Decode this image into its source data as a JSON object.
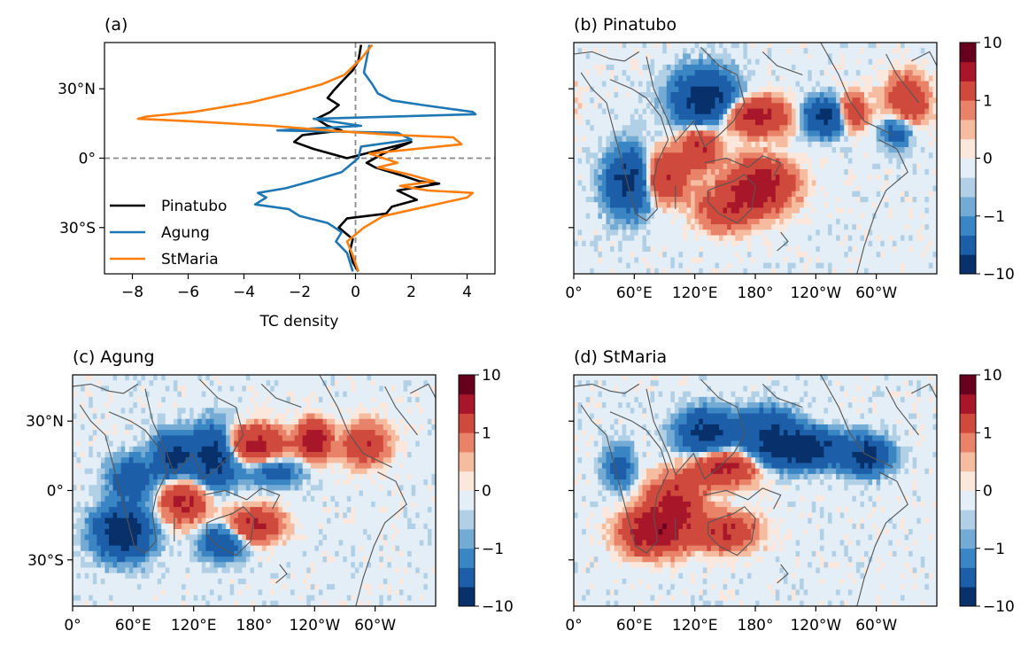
{
  "chart_data": [
    {
      "id": "a",
      "type": "line",
      "title": "(a)",
      "xlabel": "TC density",
      "ylabel": "",
      "xlim": [
        -9,
        5
      ],
      "ylim": [
        -50,
        50
      ],
      "xticks": [
        -8,
        -6,
        -4,
        -2,
        0,
        2,
        4
      ],
      "xtick_labels": [
        "−8",
        "−6",
        "−4",
        "−2",
        "0",
        "2",
        "4"
      ],
      "yticks": [
        30,
        0,
        -30
      ],
      "ytick_labels": [
        "30°N",
        "0°",
        "30°S"
      ],
      "reference_lines": [
        "x=0 dashed",
        "y=0 dashed"
      ],
      "legend_placement": "lower-left",
      "series": [
        {
          "name": "Pinatubo",
          "color": "#000000",
          "x": [
            0.2,
            0.1,
            -0.1,
            -0.5,
            -0.8,
            -1.0,
            -0.6,
            -0.9,
            -1.4,
            -1.0,
            -0.5,
            -1.9,
            -2.2,
            -1.5,
            -0.3,
            2.0,
            1.0,
            0.4,
            0.7,
            1.8,
            2.3,
            3.0,
            1.5,
            2.2,
            1.3,
            1.1,
            -0.3,
            -0.6,
            -0.1,
            -0.2,
            -0.1,
            0.1
          ],
          "y": [
            49,
            42,
            38,
            33,
            29,
            26,
            23,
            20,
            17,
            14,
            12,
            10,
            7,
            4,
            0,
            7,
            2,
            -2,
            -4,
            -8,
            -10,
            -11,
            -14,
            -18,
            -21,
            -24,
            -26,
            -30,
            -35,
            -40,
            -45,
            -49
          ]
        },
        {
          "name": "Agung",
          "color": "#1f77b4",
          "x": [
            0.5,
            0.4,
            0.3,
            0.6,
            0.8,
            1.3,
            2.4,
            3.6,
            4.2,
            4.3,
            -1.5,
            0.2,
            -2.8,
            1.5,
            2.0,
            0.2,
            0.1,
            -0.5,
            -1.6,
            -2.5,
            -3.5,
            -3.2,
            -3.6,
            -2.4,
            -2.0,
            -1.0,
            -0.5,
            -0.7,
            -0.3,
            -0.2,
            -0.1
          ],
          "y": [
            49,
            43,
            37,
            32,
            28,
            25,
            23,
            21,
            20,
            19,
            17,
            14,
            12,
            11,
            8,
            5,
            0,
            -6,
            -10,
            -13,
            -15,
            -17,
            -20,
            -22,
            -25,
            -28,
            -32,
            -36,
            -41,
            -45,
            -49
          ]
        },
        {
          "name": "StMaria",
          "color": "#ff7f0e",
          "x": [
            0.6,
            0.2,
            -0.4,
            -1.2,
            -2.4,
            -3.8,
            -5.8,
            -7.5,
            -7.8,
            -6.0,
            -3.0,
            -1.0,
            1.5,
            3.5,
            3.8,
            0.5,
            1.5,
            0.8,
            1.9,
            2.8,
            1.6,
            2.6,
            4.2,
            4.0,
            2.5,
            1.0,
            0.3,
            -0.3,
            -0.1,
            0.1
          ],
          "y": [
            49,
            43,
            36,
            32,
            28,
            24,
            20,
            18,
            17,
            16,
            14,
            12,
            10,
            9,
            6,
            2,
            -2,
            -4,
            -7,
            -10,
            -12,
            -14,
            -15,
            -17,
            -21,
            -25,
            -30,
            -36,
            -42,
            -49
          ]
        }
      ]
    },
    {
      "id": "b",
      "type": "heatmap",
      "title": "(b) Pinatubo",
      "xtick_labels": [
        "0°",
        "60°E",
        "120°E",
        "180°",
        "120°W",
        "60°W"
      ],
      "ytick_labels": [],
      "colorbar_ticks": [
        "10",
        "1",
        "0",
        "−1",
        "−10"
      ],
      "colormap": "RdBu_r",
      "features": [
        {
          "lon": 185,
          "lat": -12,
          "value": 8,
          "w": 40,
          "h": 14
        },
        {
          "lon": 180,
          "lat": 18,
          "value": 6,
          "w": 45,
          "h": 10
        },
        {
          "lon": 130,
          "lat": 25,
          "value": -7,
          "w": 40,
          "h": 16
        },
        {
          "lon": 250,
          "lat": 18,
          "value": -6,
          "w": 30,
          "h": 10
        },
        {
          "lon": 275,
          "lat": 20,
          "value": 5,
          "w": 20,
          "h": 10
        },
        {
          "lon": 55,
          "lat": -10,
          "value": -6,
          "w": 30,
          "h": 18
        },
        {
          "lon": 90,
          "lat": -8,
          "value": 5,
          "w": 30,
          "h": 14
        },
        {
          "lon": 125,
          "lat": 5,
          "value": 5,
          "w": 25,
          "h": 12
        },
        {
          "lon": 150,
          "lat": -22,
          "value": 4,
          "w": 35,
          "h": 12
        },
        {
          "lon": 330,
          "lat": 25,
          "value": 4,
          "w": 30,
          "h": 14
        },
        {
          "lon": 320,
          "lat": 12,
          "value": -3,
          "w": 20,
          "h": 10
        }
      ]
    },
    {
      "id": "c",
      "type": "heatmap",
      "title": "(c) Agung",
      "xtick_labels": [
        "0°",
        "60°E",
        "120°E",
        "180°",
        "120°W",
        "60°W"
      ],
      "ytick_labels": [
        "30°N",
        "0°",
        "30°S"
      ],
      "colorbar_ticks": [
        "10",
        "1",
        "0",
        "−1",
        "−10"
      ],
      "colormap": "RdBu_r",
      "features": [
        {
          "lon": 50,
          "lat": -18,
          "value": -8,
          "w": 35,
          "h": 14
        },
        {
          "lon": 140,
          "lat": 15,
          "value": -7,
          "w": 30,
          "h": 16
        },
        {
          "lon": 110,
          "lat": -5,
          "value": 5,
          "w": 30,
          "h": 12
        },
        {
          "lon": 100,
          "lat": 15,
          "value": -6,
          "w": 25,
          "h": 12
        },
        {
          "lon": 180,
          "lat": 20,
          "value": 6,
          "w": 40,
          "h": 10
        },
        {
          "lon": 240,
          "lat": 22,
          "value": 8,
          "w": 20,
          "h": 10
        },
        {
          "lon": 290,
          "lat": 20,
          "value": 4,
          "w": 30,
          "h": 12
        },
        {
          "lon": 180,
          "lat": -15,
          "value": 5,
          "w": 35,
          "h": 10
        },
        {
          "lon": 60,
          "lat": 5,
          "value": -4,
          "w": 30,
          "h": 12
        },
        {
          "lon": 150,
          "lat": -22,
          "value": -4,
          "w": 30,
          "h": 10
        },
        {
          "lon": 200,
          "lat": 8,
          "value": -3,
          "w": 35,
          "h": 8
        }
      ]
    },
    {
      "id": "d",
      "type": "heatmap",
      "title": "(d) StMaria",
      "xtick_labels": [
        "0°",
        "60°E",
        "120°E",
        "180°",
        "120°W",
        "60°W"
      ],
      "ytick_labels": [],
      "colorbar_ticks": [
        "10",
        "1",
        "0",
        "−1",
        "−10"
      ],
      "colormap": "RdBu_r",
      "features": [
        {
          "lon": 80,
          "lat": -18,
          "value": 8,
          "w": 40,
          "h": 12
        },
        {
          "lon": 100,
          "lat": -5,
          "value": 6,
          "w": 35,
          "h": 14
        },
        {
          "lon": 150,
          "lat": 10,
          "value": 6,
          "w": 40,
          "h": 10
        },
        {
          "lon": 220,
          "lat": 18,
          "value": -8,
          "w": 60,
          "h": 10
        },
        {
          "lon": 130,
          "lat": 25,
          "value": -6,
          "w": 35,
          "h": 12
        },
        {
          "lon": 190,
          "lat": 28,
          "value": -4,
          "w": 40,
          "h": 10
        },
        {
          "lon": 290,
          "lat": 15,
          "value": -6,
          "w": 30,
          "h": 10
        },
        {
          "lon": 150,
          "lat": -18,
          "value": 5,
          "w": 40,
          "h": 10
        },
        {
          "lon": 45,
          "lat": 10,
          "value": -3,
          "w": 20,
          "h": 12
        }
      ]
    }
  ]
}
